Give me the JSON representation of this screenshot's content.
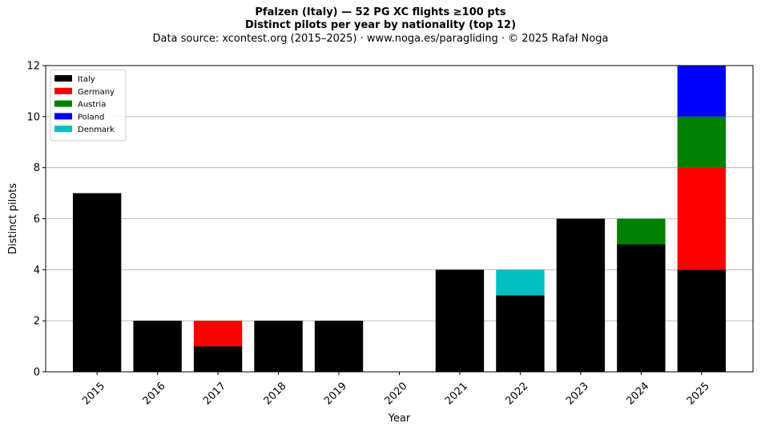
{
  "chart_data": {
    "type": "bar",
    "stacked": true,
    "title_line1": "Pfalzen (Italy)  —  52 PG XC flights ≥100 pts",
    "title_line2": "Distinct pilots per year by nationality (top 12)",
    "subtitle": "Data source: xcontest.org (2015–2025)  ·  www.noga.es/paragliding  ·  © 2025 Rafał Noga",
    "xlabel": "Year",
    "ylabel": "Distinct pilots",
    "ylim": [
      0,
      12
    ],
    "yticks": [
      0,
      2,
      4,
      6,
      8,
      10,
      12
    ],
    "grid": "y",
    "legend_position": "top-left",
    "categories": [
      "2015",
      "2016",
      "2017",
      "2018",
      "2019",
      "2020",
      "2021",
      "2022",
      "2023",
      "2024",
      "2025"
    ],
    "series": [
      {
        "name": "Italy",
        "color": "#000000",
        "values": [
          7,
          2,
          1,
          2,
          2,
          0,
          4,
          3,
          6,
          5,
          4
        ]
      },
      {
        "name": "Germany",
        "color": "#ff0000",
        "values": [
          0,
          0,
          1,
          0,
          0,
          0,
          0,
          0,
          0,
          0,
          4
        ]
      },
      {
        "name": "Austria",
        "color": "#008000",
        "values": [
          0,
          0,
          0,
          0,
          0,
          0,
          0,
          0,
          0,
          1,
          2
        ]
      },
      {
        "name": "Poland",
        "color": "#0000ff",
        "values": [
          0,
          0,
          0,
          0,
          0,
          0,
          0,
          0,
          0,
          0,
          2
        ]
      },
      {
        "name": "Denmark",
        "color": "#00bfbf",
        "values": [
          0,
          0,
          0,
          0,
          0,
          0,
          0,
          1,
          0,
          0,
          0
        ]
      }
    ]
  }
}
